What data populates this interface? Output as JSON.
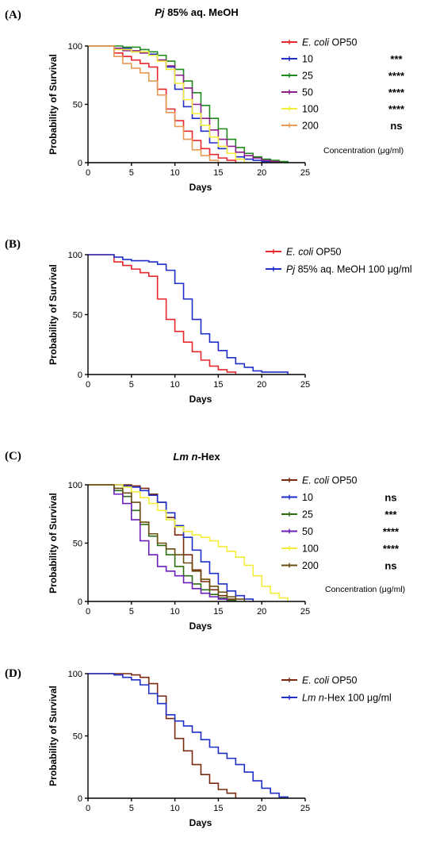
{
  "chart_data": [
    {
      "type": "line",
      "panel_label": "(A)",
      "title_italic": "Pj",
      "title_rest": " 85% aq. MeOH",
      "xlabel": "Days",
      "ylabel": "Probability of Survival",
      "xlim": [
        0,
        25
      ],
      "ylim": [
        0,
        100
      ],
      "xticks": [
        0,
        5,
        10,
        15,
        20,
        25
      ],
      "yticks": [
        0,
        50,
        100
      ],
      "legend_note": "Concentration (μg/ml)",
      "series": [
        {
          "name_italic": "E. coli",
          "name_rest": " OP50",
          "color": "#e8282d",
          "significance": "",
          "x": [
            0,
            3,
            4,
            5,
            6,
            7,
            8,
            9,
            10,
            11,
            12,
            13,
            14,
            15,
            16,
            17
          ],
          "y": [
            100,
            94,
            91,
            88,
            85,
            82,
            63,
            46,
            36,
            27,
            19,
            12,
            7,
            4,
            2,
            0
          ]
        },
        {
          "name": "10",
          "color": "#1f2fc8",
          "significance": "***",
          "x": [
            0,
            3,
            5,
            7,
            8,
            9,
            10,
            11,
            12,
            13,
            14,
            15,
            16,
            17,
            18,
            19,
            20,
            21
          ],
          "y": [
            100,
            98,
            95,
            93,
            88,
            82,
            63,
            48,
            38,
            27,
            17,
            12,
            8,
            5,
            3,
            2,
            1,
            0
          ]
        },
        {
          "name": "25",
          "color": "#1e8a1e",
          "significance": "****",
          "x": [
            0,
            4,
            6,
            7,
            8,
            9,
            10,
            11,
            12,
            13,
            14,
            15,
            16,
            17,
            18,
            19,
            20,
            21,
            22,
            23
          ],
          "y": [
            100,
            99,
            97,
            95,
            92,
            87,
            80,
            70,
            60,
            49,
            38,
            29,
            20,
            13,
            8,
            5,
            3,
            2,
            1,
            0
          ]
        },
        {
          "name": "50",
          "color": "#8a1e8a",
          "significance": "****",
          "x": [
            0,
            3,
            4,
            6,
            7,
            8,
            9,
            10,
            11,
            12,
            13,
            14,
            15,
            16,
            17,
            18,
            19,
            20,
            21,
            22
          ],
          "y": [
            100,
            98,
            96,
            94,
            92,
            88,
            83,
            75,
            64,
            50,
            38,
            28,
            20,
            14,
            9,
            6,
            4,
            2,
            1,
            0
          ]
        },
        {
          "name": "100",
          "color": "#f2ee3a",
          "significance": "****",
          "x": [
            0,
            3,
            5,
            7,
            8,
            9,
            10,
            11,
            12,
            13,
            14,
            15,
            16,
            17,
            18
          ],
          "y": [
            100,
            97,
            95,
            92,
            87,
            80,
            68,
            54,
            42,
            32,
            22,
            14,
            8,
            3,
            0
          ]
        },
        {
          "name": "200",
          "color": "#e89a55",
          "significance": "ns",
          "x": [
            0,
            3,
            4,
            5,
            6,
            7,
            8,
            9,
            10,
            11,
            12,
            13,
            14,
            15
          ],
          "y": [
            100,
            91,
            85,
            81,
            77,
            70,
            58,
            43,
            31,
            20,
            11,
            6,
            2,
            0
          ]
        }
      ]
    },
    {
      "type": "line",
      "panel_label": "(B)",
      "xlabel": "Days",
      "ylabel": "Probability of Survival",
      "xlim": [
        0,
        25
      ],
      "ylim": [
        0,
        100
      ],
      "xticks": [
        0,
        5,
        10,
        15,
        20,
        25
      ],
      "yticks": [
        0,
        50,
        100
      ],
      "series": [
        {
          "name_italic": "E. coli",
          "name_rest": " OP50",
          "color": "#e8282d",
          "x": [
            0,
            3,
            4,
            5,
            6,
            7,
            8,
            9,
            10,
            11,
            12,
            13,
            14,
            15,
            16,
            17
          ],
          "y": [
            100,
            94,
            91,
            88,
            85,
            82,
            63,
            46,
            36,
            27,
            19,
            12,
            7,
            4,
            2,
            0
          ]
        },
        {
          "name_italic": "Pj",
          "name_rest": " 85% aq. MeOH 100 μg/ml",
          "color": "#1f2fc8",
          "x": [
            0,
            3,
            4,
            5,
            7,
            8,
            9,
            10,
            11,
            12,
            13,
            14,
            15,
            16,
            17,
            18,
            19,
            20,
            23
          ],
          "y": [
            100,
            98,
            96,
            95,
            94,
            92,
            87,
            76,
            63,
            46,
            34,
            27,
            20,
            14,
            9,
            6,
            3,
            2,
            0
          ]
        }
      ]
    },
    {
      "type": "line",
      "panel_label": "(C)",
      "title_italic": "Lm n",
      "title_rest": "-Hex",
      "xlabel": "Days",
      "ylabel": "Probability of Survival",
      "xlim": [
        0,
        25
      ],
      "ylim": [
        0,
        100
      ],
      "xticks": [
        0,
        5,
        10,
        15,
        20,
        25
      ],
      "yticks": [
        0,
        50,
        100
      ],
      "legend_note": "Concentration (μg/ml)",
      "series": [
        {
          "name_italic": "E. coli",
          "name_rest": " OP50",
          "color": "#7a2a10",
          "significance": "",
          "x": [
            0,
            5,
            6,
            7,
            8,
            9,
            10,
            11,
            12,
            13,
            14,
            15,
            16,
            17
          ],
          "y": [
            100,
            99,
            97,
            92,
            85,
            72,
            57,
            40,
            27,
            17,
            10,
            5,
            2,
            0
          ]
        },
        {
          "name": "10",
          "color": "#1f2fc8",
          "significance": "ns",
          "x": [
            0,
            4,
            5,
            6,
            7,
            8,
            9,
            10,
            11,
            12,
            13,
            14,
            15,
            16,
            17,
            18,
            19
          ],
          "y": [
            100,
            99,
            98,
            95,
            91,
            85,
            76,
            65,
            55,
            44,
            34,
            24,
            15,
            9,
            5,
            2,
            0
          ]
        },
        {
          "name": "25",
          "color": "#2e6e12",
          "significance": "***",
          "x": [
            0,
            3,
            4,
            5,
            6,
            7,
            8,
            9,
            10,
            11,
            12,
            13,
            14,
            15,
            16,
            17
          ],
          "y": [
            100,
            95,
            90,
            78,
            66,
            56,
            48,
            40,
            30,
            22,
            15,
            10,
            6,
            3,
            1,
            0
          ]
        },
        {
          "name": "50",
          "color": "#6a1fb8",
          "significance": "****",
          "x": [
            0,
            3,
            4,
            5,
            6,
            7,
            8,
            9,
            10,
            11,
            12,
            13,
            14,
            15,
            16
          ],
          "y": [
            100,
            92,
            84,
            70,
            52,
            40,
            30,
            26,
            22,
            16,
            11,
            7,
            4,
            2,
            0
          ]
        },
        {
          "name": "100",
          "color": "#f2ee3a",
          "significance": "****",
          "x": [
            0,
            4,
            5,
            6,
            7,
            8,
            9,
            10,
            11,
            12,
            13,
            14,
            15,
            16,
            17,
            18,
            19,
            20,
            21,
            22,
            23
          ],
          "y": [
            100,
            98,
            94,
            89,
            84,
            78,
            70,
            64,
            60,
            57,
            55,
            52,
            47,
            43,
            38,
            31,
            22,
            13,
            7,
            3,
            0
          ]
        },
        {
          "name": "200",
          "color": "#6a4d10",
          "significance": "ns",
          "x": [
            0,
            3,
            4,
            5,
            6,
            7,
            8,
            9,
            10,
            11,
            12,
            13,
            14,
            15,
            16,
            17,
            18
          ],
          "y": [
            100,
            97,
            93,
            85,
            68,
            58,
            50,
            45,
            40,
            33,
            26,
            19,
            13,
            8,
            4,
            2,
            0
          ]
        }
      ]
    },
    {
      "type": "line",
      "panel_label": "(D)",
      "xlabel": "Days",
      "ylabel": "Probability of Survival",
      "xlim": [
        0,
        25
      ],
      "ylim": [
        0,
        100
      ],
      "xticks": [
        0,
        5,
        10,
        15,
        20,
        25
      ],
      "yticks": [
        0,
        50,
        100
      ],
      "series": [
        {
          "name_italic": "E. coli",
          "name_rest": " OP50",
          "color": "#7a2a10",
          "x": [
            0,
            5,
            6,
            7,
            8,
            9,
            10,
            11,
            12,
            13,
            14,
            15,
            16,
            17
          ],
          "y": [
            100,
            99,
            97,
            92,
            82,
            64,
            48,
            38,
            27,
            19,
            12,
            7,
            4,
            0
          ]
        },
        {
          "name_italic": "Lm n",
          "name_rest": "-Hex 100 μg/ml",
          "color": "#1f2fc8",
          "x": [
            0,
            3,
            4,
            5,
            6,
            7,
            8,
            9,
            10,
            11,
            12,
            13,
            14,
            15,
            16,
            17,
            18,
            19,
            20,
            21,
            22,
            23
          ],
          "y": [
            100,
            99,
            97,
            95,
            91,
            84,
            76,
            67,
            62,
            58,
            53,
            47,
            41,
            36,
            32,
            27,
            21,
            14,
            8,
            4,
            1,
            0
          ]
        }
      ]
    }
  ]
}
